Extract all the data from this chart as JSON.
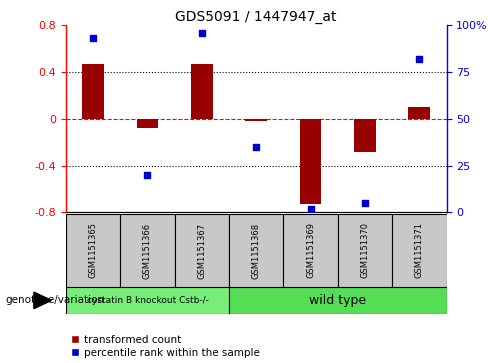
{
  "title": "GDS5091 / 1447947_at",
  "samples": [
    "GSM1151365",
    "GSM1151366",
    "GSM1151367",
    "GSM1151368",
    "GSM1151369",
    "GSM1151370",
    "GSM1151371"
  ],
  "bar_values": [
    0.47,
    -0.08,
    0.47,
    -0.02,
    -0.73,
    -0.28,
    0.1
  ],
  "dot_values": [
    93,
    20,
    96,
    35,
    2,
    5,
    82
  ],
  "ylim_left": [
    -0.8,
    0.8
  ],
  "ylim_right": [
    0,
    100
  ],
  "yticks_left": [
    -0.8,
    -0.4,
    0.0,
    0.4,
    0.8
  ],
  "yticks_right": [
    0,
    25,
    50,
    75,
    100
  ],
  "hlines_black": [
    -0.4,
    0.4
  ],
  "hline_red": 0.0,
  "group1_label": "cystatin B knockout Cstb-/-",
  "group2_label": "wild type",
  "group1_count": 3,
  "group2_count": 4,
  "legend_bar_label": "transformed count",
  "legend_dot_label": "percentile rank within the sample",
  "bar_color": "#990000",
  "dot_color": "#0000CC",
  "group1_color": "#77EE77",
  "group2_color": "#55DD55",
  "sample_box_color": "#C8C8C8",
  "genotype_label": "genotype/variation"
}
